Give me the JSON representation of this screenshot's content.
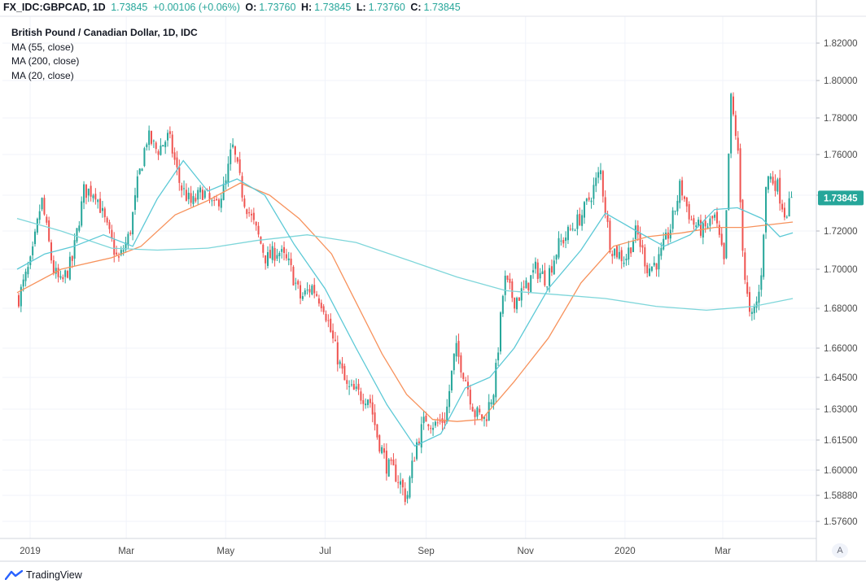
{
  "header": {
    "symbol": "FX_IDC:GBPCAD, 1D",
    "last": "1.73845",
    "change": "+0.00106 (+0.06%)",
    "o_label": "O:",
    "o_value": "1.73760",
    "h_label": "H:",
    "h_value": "1.73845",
    "l_label": "L:",
    "l_value": "1.73760",
    "c_label": "C:",
    "c_value": "1.73845"
  },
  "legend": {
    "title": "British Pound / Canadian Dollar, 1D, IDC",
    "ma55": "MA (55, close)",
    "ma200": "MA (200, close)",
    "ma20": "MA (20, close)"
  },
  "branding": {
    "name": "TradingView",
    "icon": "tradingview-logo-icon"
  },
  "auto_button": "A",
  "colors": {
    "up": "#26a69a",
    "down": "#ef5350",
    "ma55": "#f7925c",
    "ma200": "#7ed6da",
    "ma20": "#5cc9d6",
    "price_badge": "#26a69a",
    "grid": "#f0f3fa"
  },
  "chart_data": {
    "type": "candlestick",
    "title": "British Pound / Canadian Dollar, 1D, IDC",
    "y_ticks": [
      "1.82000",
      "1.80000",
      "1.78000",
      "1.76000",
      "1.74000",
      "1.72000",
      "1.70000",
      "1.68000",
      "1.66000",
      "1.64500",
      "1.63000",
      "1.61500",
      "1.60000",
      "1.58880",
      "1.57600"
    ],
    "y_tick_values": [
      1.82,
      1.8,
      1.78,
      1.76,
      1.74,
      1.72,
      1.7,
      1.68,
      1.66,
      1.645,
      1.63,
      1.615,
      1.6,
      1.5888,
      1.576
    ],
    "x_ticks": [
      "2019",
      "Mar",
      "May",
      "Jul",
      "Sep",
      "Nov",
      "2020",
      "Mar"
    ],
    "x_tick_dates": [
      "2019-01-01",
      "2019-03-01",
      "2019-05-01",
      "2019-07-01",
      "2019-09-01",
      "2019-11-01",
      "2020-01-01",
      "2020-03-01"
    ],
    "last_price": "1.73845",
    "close_path": [
      [
        "2018-12-24",
        1.683
      ],
      [
        "2019-01-02",
        1.705
      ],
      [
        "2019-01-08",
        1.738
      ],
      [
        "2019-01-15",
        1.7
      ],
      [
        "2019-01-20",
        1.692
      ],
      [
        "2019-01-27",
        1.705
      ],
      [
        "2019-02-03",
        1.742
      ],
      [
        "2019-02-10",
        1.742
      ],
      [
        "2019-02-17",
        1.722
      ],
      [
        "2019-02-24",
        1.704
      ],
      [
        "2019-03-03",
        1.718
      ],
      [
        "2019-03-08",
        1.746
      ],
      [
        "2019-03-14",
        1.77
      ],
      [
        "2019-03-20",
        1.762
      ],
      [
        "2019-03-27",
        1.77
      ],
      [
        "2019-04-03",
        1.745
      ],
      [
        "2019-04-10",
        1.735
      ],
      [
        "2019-04-17",
        1.742
      ],
      [
        "2019-04-24",
        1.733
      ],
      [
        "2019-05-01",
        1.745
      ],
      [
        "2019-05-05",
        1.765
      ],
      [
        "2019-05-12",
        1.738
      ],
      [
        "2019-05-19",
        1.722
      ],
      [
        "2019-05-26",
        1.705
      ],
      [
        "2019-06-02",
        1.71
      ],
      [
        "2019-06-09",
        1.702
      ],
      [
        "2019-06-16",
        1.685
      ],
      [
        "2019-06-23",
        1.691
      ],
      [
        "2019-06-30",
        1.682
      ],
      [
        "2019-07-07",
        1.66
      ],
      [
        "2019-07-14",
        1.64
      ],
      [
        "2019-07-21",
        1.637
      ],
      [
        "2019-07-28",
        1.636
      ],
      [
        "2019-08-02",
        1.617
      ],
      [
        "2019-08-08",
        1.602
      ],
      [
        "2019-08-14",
        1.598
      ],
      [
        "2019-08-20",
        1.587
      ],
      [
        "2019-08-26",
        1.613
      ],
      [
        "2019-09-01",
        1.626
      ],
      [
        "2019-09-07",
        1.622
      ],
      [
        "2019-09-13",
        1.626
      ],
      [
        "2019-09-19",
        1.66
      ],
      [
        "2019-09-25",
        1.645
      ],
      [
        "2019-10-01",
        1.628
      ],
      [
        "2019-10-07",
        1.625
      ],
      [
        "2019-10-13",
        1.641
      ],
      [
        "2019-10-19",
        1.695
      ],
      [
        "2019-10-25",
        1.684
      ],
      [
        "2019-11-01",
        1.69
      ],
      [
        "2019-11-07",
        1.7
      ],
      [
        "2019-11-14",
        1.695
      ],
      [
        "2019-11-21",
        1.712
      ],
      [
        "2019-11-28",
        1.72
      ],
      [
        "2019-12-05",
        1.728
      ],
      [
        "2019-12-12",
        1.742
      ],
      [
        "2019-12-17",
        1.752
      ],
      [
        "2019-12-23",
        1.712
      ],
      [
        "2020-01-01",
        1.705
      ],
      [
        "2020-01-08",
        1.72
      ],
      [
        "2020-01-15",
        1.7
      ],
      [
        "2020-01-22",
        1.705
      ],
      [
        "2020-01-29",
        1.722
      ],
      [
        "2020-02-04",
        1.745
      ],
      [
        "2020-02-11",
        1.725
      ],
      [
        "2020-02-18",
        1.72
      ],
      [
        "2020-02-25",
        1.728
      ],
      [
        "2020-03-02",
        1.702
      ],
      [
        "2020-03-06",
        1.79
      ],
      [
        "2020-03-10",
        1.765
      ],
      [
        "2020-03-14",
        1.7
      ],
      [
        "2020-03-18",
        1.672
      ],
      [
        "2020-03-24",
        1.69
      ],
      [
        "2020-03-28",
        1.75
      ],
      [
        "2020-04-03",
        1.746
      ],
      [
        "2020-04-08",
        1.73
      ],
      [
        "2020-04-13",
        1.738
      ]
    ],
    "series": [
      {
        "name": "MA (55, close)",
        "points": [
          [
            "2018-12-24",
            1.688
          ],
          [
            "2019-01-20",
            1.7
          ],
          [
            "2019-02-20",
            1.706
          ],
          [
            "2019-03-10",
            1.712
          ],
          [
            "2019-03-31",
            1.729
          ],
          [
            "2019-04-20",
            1.737
          ],
          [
            "2019-05-10",
            1.746
          ],
          [
            "2019-05-28",
            1.74
          ],
          [
            "2019-06-15",
            1.727
          ],
          [
            "2019-07-05",
            1.708
          ],
          [
            "2019-07-20",
            1.683
          ],
          [
            "2019-08-05",
            1.657
          ],
          [
            "2019-08-20",
            1.637
          ],
          [
            "2019-09-05",
            1.625
          ],
          [
            "2019-09-20",
            1.624
          ],
          [
            "2019-10-05",
            1.625
          ],
          [
            "2019-10-25",
            1.643
          ],
          [
            "2019-11-15",
            1.665
          ],
          [
            "2019-12-05",
            1.693
          ],
          [
            "2019-12-25",
            1.712
          ],
          [
            "2020-01-15",
            1.717
          ],
          [
            "2020-02-05",
            1.719
          ],
          [
            "2020-02-25",
            1.722
          ],
          [
            "2020-03-15",
            1.722
          ],
          [
            "2020-04-13",
            1.725
          ]
        ]
      },
      {
        "name": "MA (200, close)",
        "points": [
          [
            "2018-12-24",
            1.727
          ],
          [
            "2019-01-20",
            1.72
          ],
          [
            "2019-02-20",
            1.711
          ],
          [
            "2019-03-20",
            1.71
          ],
          [
            "2019-04-20",
            1.711
          ],
          [
            "2019-05-20",
            1.715
          ],
          [
            "2019-06-20",
            1.718
          ],
          [
            "2019-07-20",
            1.714
          ],
          [
            "2019-08-20",
            1.705
          ],
          [
            "2019-09-20",
            1.696
          ],
          [
            "2019-10-20",
            1.689
          ],
          [
            "2019-11-20",
            1.687
          ],
          [
            "2019-12-20",
            1.685
          ],
          [
            "2020-01-20",
            1.681
          ],
          [
            "2020-02-20",
            1.679
          ],
          [
            "2020-03-20",
            1.681
          ],
          [
            "2020-04-13",
            1.685
          ]
        ]
      },
      {
        "name": "MA (20, close)",
        "points": [
          [
            "2018-12-24",
            1.7
          ],
          [
            "2019-01-10",
            1.708
          ],
          [
            "2019-01-28",
            1.712
          ],
          [
            "2019-02-15",
            1.718
          ],
          [
            "2019-03-05",
            1.712
          ],
          [
            "2019-03-20",
            1.738
          ],
          [
            "2019-04-05",
            1.757
          ],
          [
            "2019-04-20",
            1.742
          ],
          [
            "2019-05-08",
            1.748
          ],
          [
            "2019-05-25",
            1.74
          ],
          [
            "2019-06-12",
            1.713
          ],
          [
            "2019-07-01",
            1.69
          ],
          [
            "2019-07-20",
            1.66
          ],
          [
            "2019-08-08",
            1.632
          ],
          [
            "2019-08-25",
            1.612
          ],
          [
            "2019-09-10",
            1.618
          ],
          [
            "2019-09-25",
            1.64
          ],
          [
            "2019-10-10",
            1.645
          ],
          [
            "2019-10-25",
            1.66
          ],
          [
            "2019-11-15",
            1.69
          ],
          [
            "2019-12-05",
            1.71
          ],
          [
            "2019-12-20",
            1.73
          ],
          [
            "2020-01-08",
            1.72
          ],
          [
            "2020-01-25",
            1.712
          ],
          [
            "2020-02-10",
            1.718
          ],
          [
            "2020-02-25",
            1.732
          ],
          [
            "2020-03-10",
            1.733
          ],
          [
            "2020-03-25",
            1.727
          ],
          [
            "2020-04-05",
            1.717
          ],
          [
            "2020-04-13",
            1.719
          ]
        ]
      }
    ]
  }
}
